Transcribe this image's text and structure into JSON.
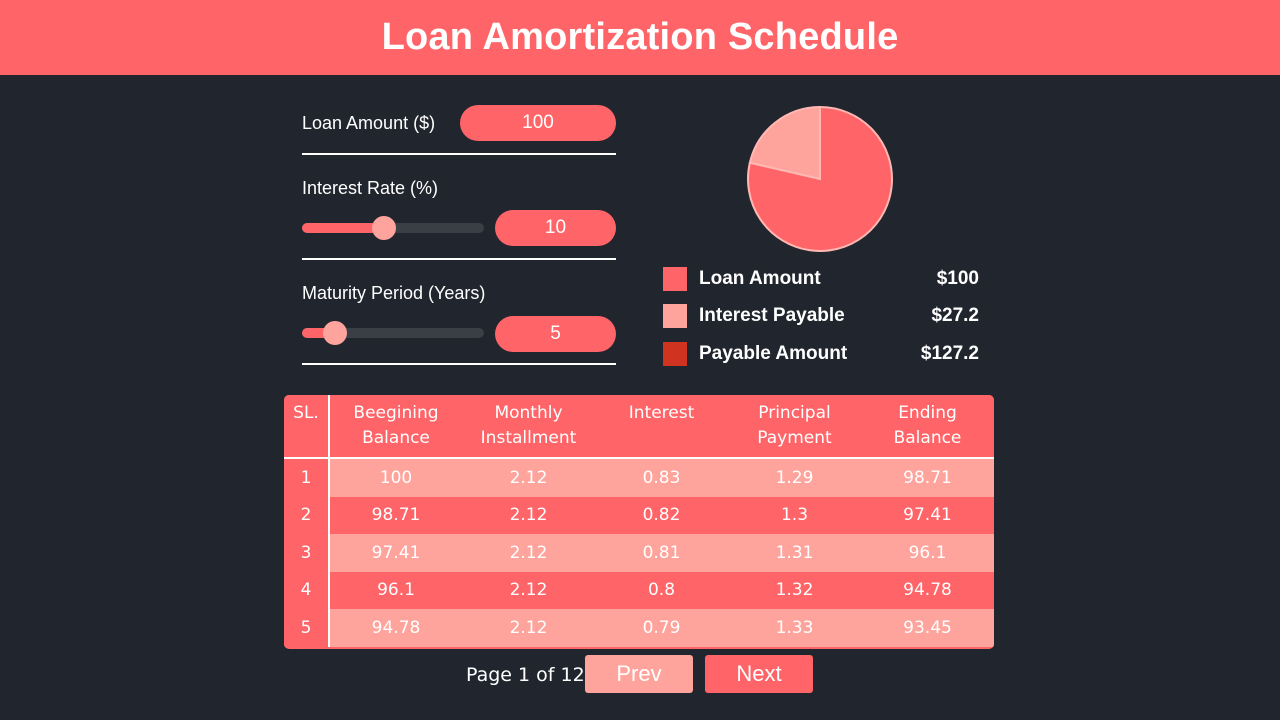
{
  "header": {
    "title": "Loan Amortization Schedule"
  },
  "form": {
    "loan_amount": {
      "label": "Loan Amount ($)",
      "value": "100"
    },
    "interest_rate": {
      "label": "Interest Rate (%)",
      "value": "10",
      "slider_fraction": 0.45
    },
    "maturity": {
      "label": "Maturity Period (Years)",
      "value": "5",
      "slider_fraction": 0.18
    }
  },
  "legend": [
    {
      "name": "Loan Amount",
      "value": "$100",
      "color": "#ff6568"
    },
    {
      "name": "Interest Payable",
      "value": "$27.2",
      "color": "#ffa49c"
    },
    {
      "name": "Payable Amount",
      "value": "$127.2",
      "color": "#d03420"
    }
  ],
  "pie": {
    "slices": [
      {
        "value": 100,
        "color": "#ff6568"
      },
      {
        "value": 27.2,
        "color": "#ffa49c"
      }
    ],
    "stroke": "#ffb8b3"
  },
  "table": {
    "headers": [
      "SL.",
      "Beegining Balance",
      "Monthly Installment",
      "Interest",
      "Principal Payment",
      "Ending Balance"
    ],
    "rows": [
      [
        "1",
        "100",
        "2.12",
        "0.83",
        "1.29",
        "98.71"
      ],
      [
        "2",
        "98.71",
        "2.12",
        "0.82",
        "1.3",
        "97.41"
      ],
      [
        "3",
        "97.41",
        "2.12",
        "0.81",
        "1.31",
        "96.1"
      ],
      [
        "4",
        "96.1",
        "2.12",
        "0.8",
        "1.32",
        "94.78"
      ],
      [
        "5",
        "94.78",
        "2.12",
        "0.79",
        "1.33",
        "93.45"
      ]
    ]
  },
  "pager": {
    "info": "Page 1 of 12",
    "prev": "Prev",
    "next": "Next"
  }
}
